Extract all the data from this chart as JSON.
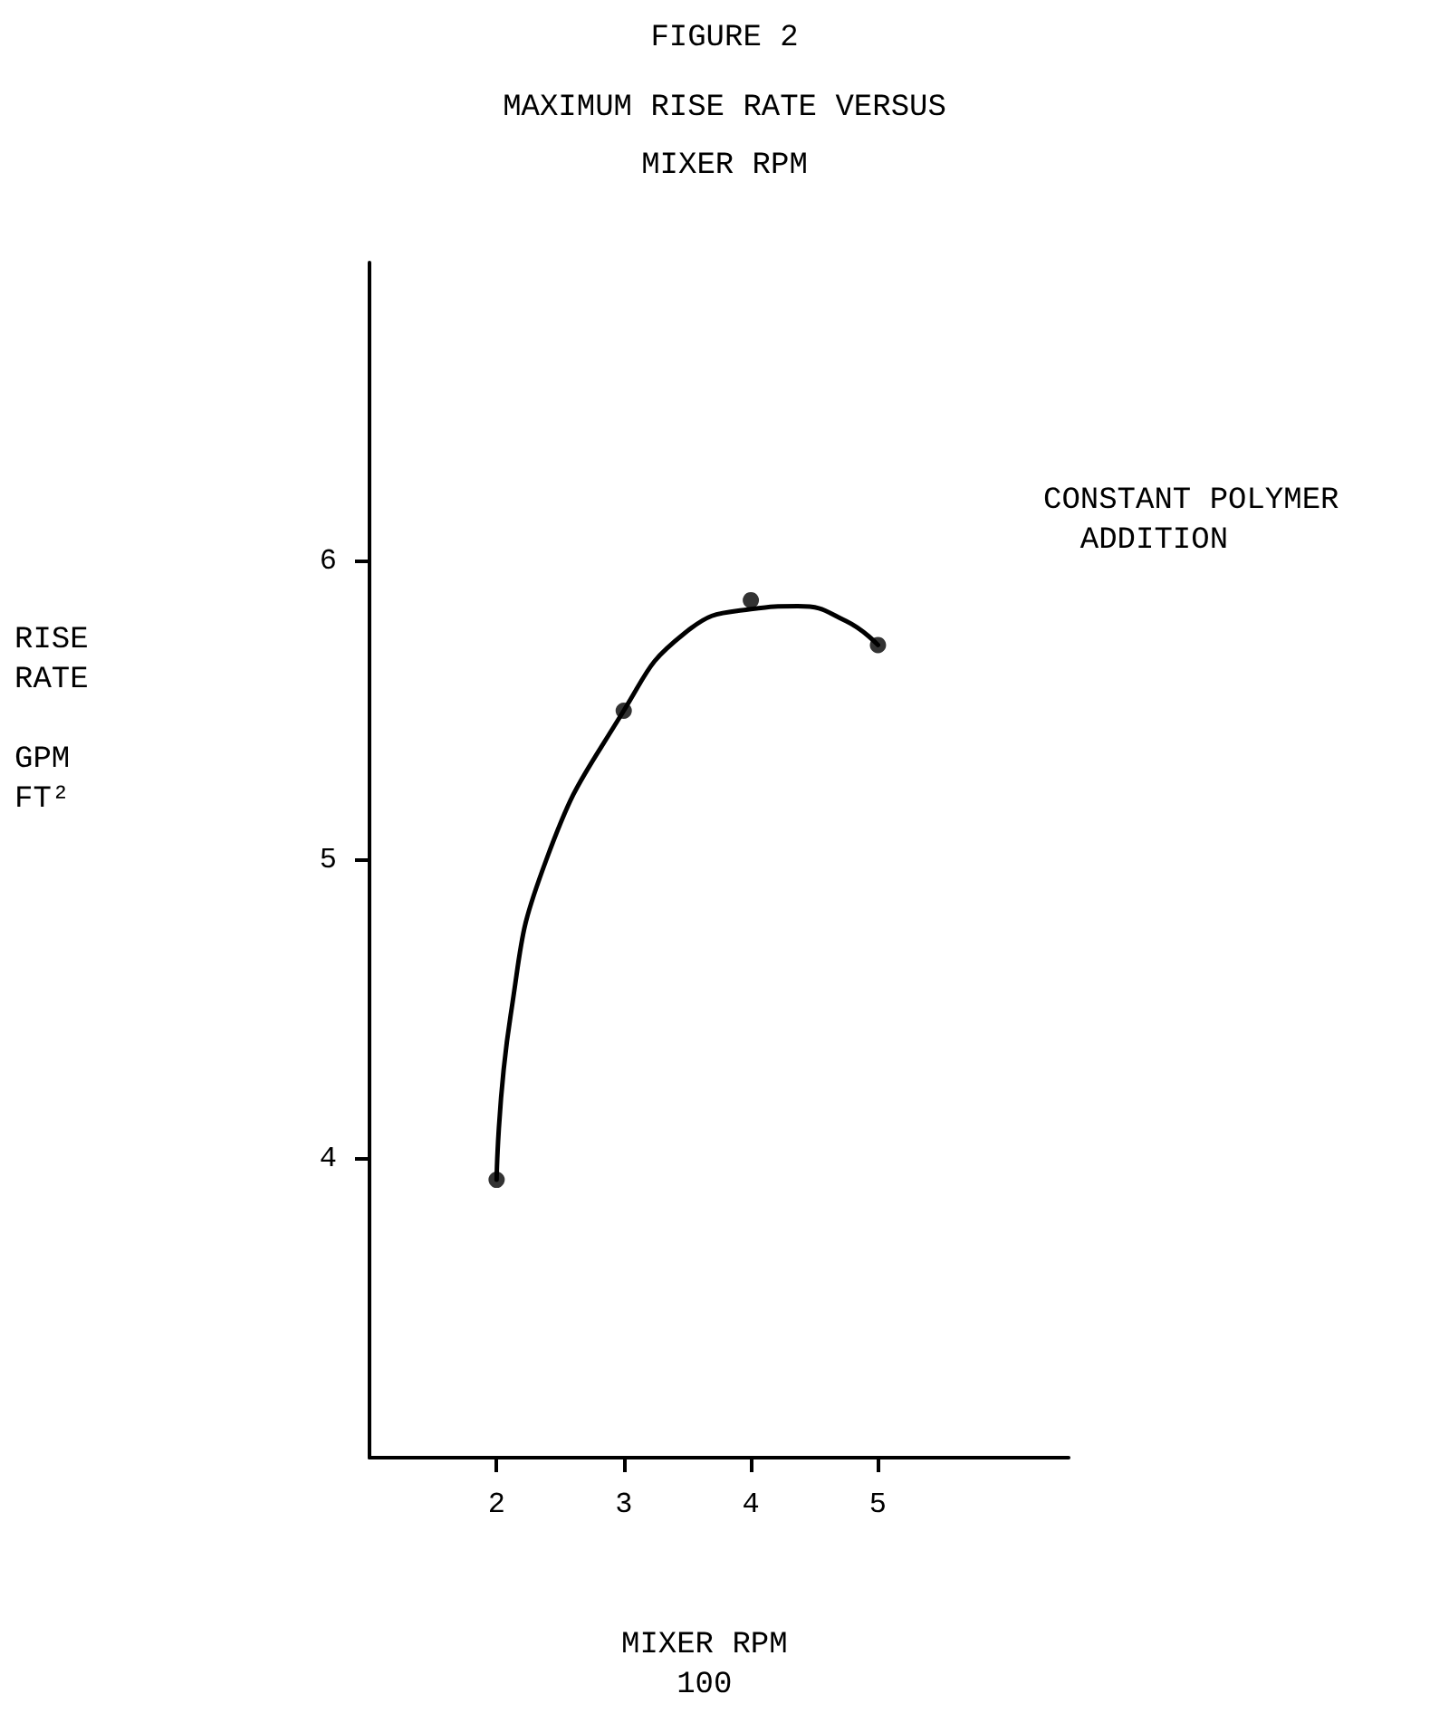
{
  "chart_data": {
    "type": "scatter",
    "title": "FIGURE 2",
    "subtitle": "MAXIMUM RISE RATE VERSUS\nMIXER RPM",
    "xlabel": "MIXER RPM\n100",
    "ylabel": "RISE\nRATE\n\nGPM\nFT²",
    "annotations": [
      "CONSTANT POLYMER\n  ADDITION"
    ],
    "x": [
      2,
      3,
      4,
      5
    ],
    "xlim": [
      1,
      6.5
    ],
    "xticks": [
      2,
      3,
      4,
      5
    ],
    "ylim": [
      3,
      7
    ],
    "yticks": [
      4,
      5,
      6
    ],
    "grid": false,
    "marker": "circle",
    "series": [
      {
        "color": "#000000",
        "values": [
          3.93,
          5.5,
          5.87,
          5.72
        ]
      },
      {
        "type": "line",
        "color": "#000000",
        "marker": "none",
        "line_style": "solid",
        "x": [
          2,
          2.11,
          2.39,
          3,
          3.48,
          4,
          4.37,
          4.75,
          5
        ],
        "values": [
          3.93,
          4.48,
          5.0,
          5.5,
          5.76,
          5.84,
          5.85,
          5.8,
          5.72
        ]
      }
    ]
  }
}
